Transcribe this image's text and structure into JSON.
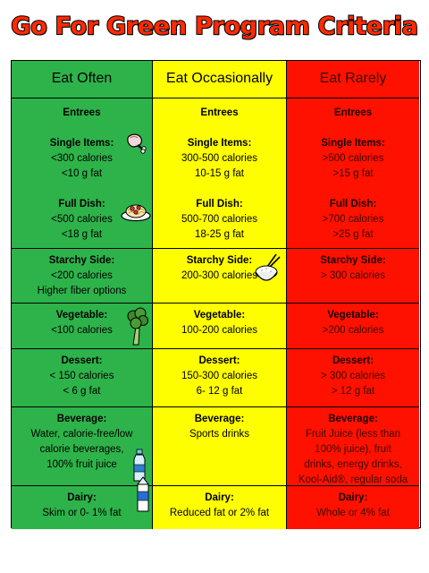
{
  "title": "Go For Green Program Criteria",
  "columns": {
    "often": {
      "color": "#2db34a",
      "header": "Eat Often",
      "entrees": "Entrees",
      "single_label": "Single Items:",
      "single_cal": "<300 calories",
      "single_fat": "<10 g fat",
      "full_label": "Full Dish:",
      "full_cal": "<500 calories",
      "full_fat": "<18 g fat",
      "starchy_label": "Starchy Side:",
      "starchy_1": "<200 calories",
      "starchy_2": "Higher fiber options",
      "veg_label": "Vegetable:",
      "veg_1": "<100 calories",
      "dessert_label": "Dessert:",
      "dessert_1": "< 150 calories",
      "dessert_2": "< 6 g fat",
      "bev_label": "Beverage:",
      "bev_1": "Water, calorie-free/low",
      "bev_2": "calorie beverages,",
      "bev_3": "100% fruit juice",
      "dairy_label": "Dairy:",
      "dairy_1": "Skim or  0- 1% fat"
    },
    "occasionally": {
      "color": "#fffe00",
      "header": "Eat Occasionally",
      "entrees": "Entrees",
      "single_label": "Single Items:",
      "single_cal": "300-500 calories",
      "single_fat": "10-15 g fat",
      "full_label": "Full Dish:",
      "full_cal": "500-700 calories",
      "full_fat": "18-25 g fat",
      "starchy_label": "Starchy Side:",
      "starchy_1": "200-300 calories",
      "veg_label": "Vegetable:",
      "veg_1": "100-200 calories",
      "dessert_label": "Dessert:",
      "dessert_1": "150-300 calories",
      "dessert_2": "6- 12 g fat",
      "bev_label": "Beverage:",
      "bev_1": "Sports drinks",
      "dairy_label": "Dairy:",
      "dairy_1": "Reduced fat or 2% fat"
    },
    "rarely": {
      "color": "#ff1100",
      "header": "Eat Rarely",
      "entrees": "Entrees",
      "single_label": "Single Items:",
      "single_cal": ">500 calories",
      "single_fat": ">15 g fat",
      "full_label": "Full Dish:",
      "full_cal": ">700 calories",
      "full_fat": ">25 g fat",
      "starchy_label": "Starchy Side:",
      "starchy_1": "> 300 calories",
      "veg_label": "Vegetable:",
      "veg_1": ">200 calories",
      "dessert_label": "Dessert:",
      "dessert_1": "> 300 calories",
      "dessert_2": "> 12 g fat",
      "bev_label": "Beverage:",
      "bev_1": "Fruit Juice (less than",
      "bev_2": "100% juice), fruit",
      "bev_3": "drinks, energy drinks,",
      "bev_4": "Kool-Aid®, regular soda",
      "dairy_label": "Dairy:",
      "dairy_1": "Whole or  4% fat"
    }
  },
  "icons": {
    "meat": "drumstick-icon",
    "pasta": "spaghetti-plate-icon",
    "rice": "rice-bowl-icon",
    "veg": "broccoli-icon",
    "water": "water-bottle-icon",
    "milk": "milk-carton-icon"
  }
}
